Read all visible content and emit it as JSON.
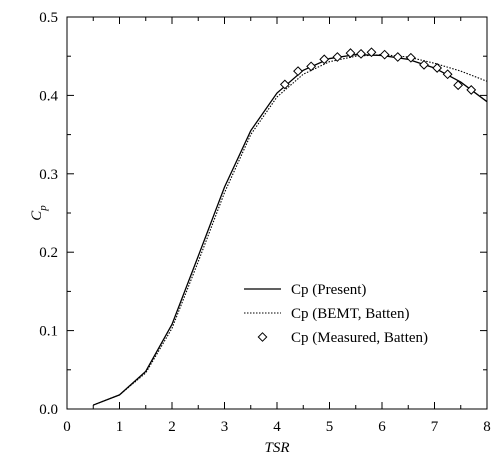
{
  "chart_data": {
    "type": "line",
    "xlabel": "TSR",
    "ylabel_main": "C",
    "ylabel_sub": "p",
    "xlim": [
      0,
      8
    ],
    "ylim": [
      0,
      0.5
    ],
    "xticks": [
      0,
      1,
      2,
      3,
      4,
      5,
      6,
      7,
      8
    ],
    "xtick_labels": [
      "0",
      "1",
      "2",
      "3",
      "4",
      "5",
      "6",
      "7",
      "8"
    ],
    "yticks": [
      0,
      0.1,
      0.2,
      0.3,
      0.4,
      0.5
    ],
    "ytick_labels": [
      "0.0",
      "0.1",
      "0.2",
      "0.3",
      "0.4",
      "0.5"
    ],
    "grid": false,
    "legend_position": "bottom-right",
    "series": [
      {
        "name": "Cp (Present)",
        "style": "solid",
        "x": [
          0.5,
          1.0,
          1.5,
          2.0,
          2.5,
          3.0,
          3.5,
          4.0,
          4.5,
          5.0,
          5.5,
          6.0,
          6.5,
          7.0,
          7.5,
          8.0
        ],
        "y": [
          0.005,
          0.018,
          0.048,
          0.108,
          0.195,
          0.283,
          0.355,
          0.403,
          0.432,
          0.447,
          0.452,
          0.451,
          0.446,
          0.435,
          0.417,
          0.392
        ]
      },
      {
        "name": "Cp (BEMT, Batten)",
        "style": "dotted",
        "x": [
          0.5,
          1.0,
          1.5,
          2.0,
          2.5,
          3.0,
          3.5,
          4.0,
          4.5,
          5.0,
          5.5,
          6.0,
          6.5,
          7.0,
          7.5,
          8.0
        ],
        "y": [
          0.005,
          0.018,
          0.046,
          0.103,
          0.188,
          0.276,
          0.35,
          0.398,
          0.427,
          0.443,
          0.45,
          0.452,
          0.449,
          0.441,
          0.431,
          0.418
        ]
      },
      {
        "name": "Cp (Measured, Batten)",
        "style": "marker",
        "x": [
          4.15,
          4.4,
          4.65,
          4.9,
          5.15,
          5.4,
          5.6,
          5.8,
          6.05,
          6.3,
          6.55,
          6.8,
          7.05,
          7.25,
          7.45,
          7.7
        ],
        "y": [
          0.414,
          0.431,
          0.437,
          0.446,
          0.449,
          0.454,
          0.453,
          0.455,
          0.452,
          0.449,
          0.448,
          0.439,
          0.435,
          0.427,
          0.413,
          0.407
        ]
      }
    ]
  }
}
